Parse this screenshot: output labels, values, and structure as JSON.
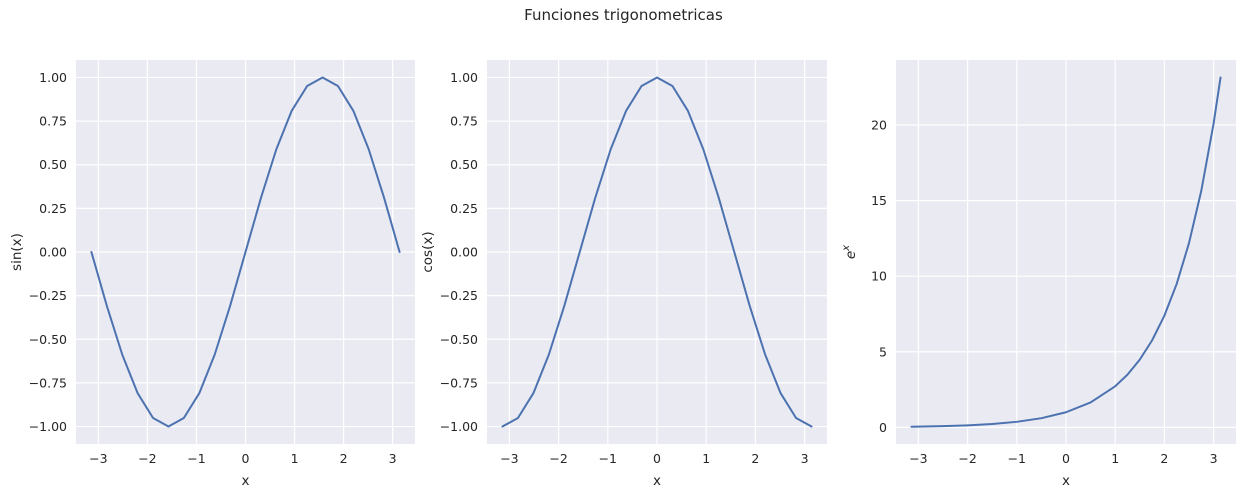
{
  "figure": {
    "title": "Funciones trigonometricas"
  },
  "style": {
    "plot_bg": "#EAEAF2",
    "grid_color": "#FFFFFF",
    "line_color": "#4C72B0",
    "text_color": "#262626"
  },
  "chart_data": [
    {
      "type": "line",
      "title": "",
      "xlabel": "x",
      "ylabel": "sin(x)",
      "xlim": [
        -3.456,
        3.456
      ],
      "ylim": [
        -1.1,
        1.1
      ],
      "grid": true,
      "xticks": [
        -3,
        -2,
        -1,
        0,
        1,
        2,
        3
      ],
      "yticks": [
        -1.0,
        -0.75,
        -0.5,
        -0.25,
        0.0,
        0.25,
        0.5,
        0.75,
        1.0
      ],
      "xtick_labels": [
        "−3",
        "−2",
        "−1",
        "0",
        "1",
        "2",
        "3"
      ],
      "ytick_labels": [
        "−1.00",
        "−0.75",
        "−0.50",
        "−0.25",
        "0.00",
        "0.25",
        "0.50",
        "0.75",
        "1.00"
      ],
      "series": [
        {
          "x": [
            -3.142,
            -2.827,
            -2.513,
            -2.199,
            -1.885,
            -1.571,
            -1.257,
            -0.942,
            -0.628,
            -0.314,
            0.0,
            0.314,
            0.628,
            0.942,
            1.257,
            1.571,
            1.885,
            2.199,
            2.513,
            2.827,
            3.142
          ],
          "y": [
            0.0,
            -0.309,
            -0.588,
            -0.809,
            -0.951,
            -1.0,
            -0.951,
            -0.809,
            -0.588,
            -0.309,
            0.0,
            0.309,
            0.588,
            0.809,
            0.951,
            1.0,
            0.951,
            0.809,
            0.588,
            0.309,
            0.0
          ]
        }
      ]
    },
    {
      "type": "line",
      "title": "",
      "xlabel": "x",
      "ylabel": "cos(x)",
      "xlim": [
        -3.456,
        3.456
      ],
      "ylim": [
        -1.1,
        1.1
      ],
      "grid": true,
      "xticks": [
        -3,
        -2,
        -1,
        0,
        1,
        2,
        3
      ],
      "yticks": [
        -1.0,
        -0.75,
        -0.5,
        -0.25,
        0.0,
        0.25,
        0.5,
        0.75,
        1.0
      ],
      "xtick_labels": [
        "−3",
        "−2",
        "−1",
        "0",
        "1",
        "2",
        "3"
      ],
      "ytick_labels": [
        "−1.00",
        "−0.75",
        "−0.50",
        "−0.25",
        "0.00",
        "0.25",
        "0.50",
        "0.75",
        "1.00"
      ],
      "series": [
        {
          "x": [
            -3.142,
            -2.827,
            -2.513,
            -2.199,
            -1.885,
            -1.571,
            -1.257,
            -0.942,
            -0.628,
            -0.314,
            0.0,
            0.314,
            0.628,
            0.942,
            1.257,
            1.571,
            1.885,
            2.199,
            2.513,
            2.827,
            3.142
          ],
          "y": [
            -1.0,
            -0.951,
            -0.809,
            -0.588,
            -0.309,
            0.0,
            0.309,
            0.588,
            0.809,
            0.951,
            1.0,
            0.951,
            0.809,
            0.588,
            0.309,
            0.0,
            -0.309,
            -0.588,
            -0.809,
            -0.951,
            -1.0
          ]
        }
      ]
    },
    {
      "type": "line",
      "title": "",
      "xlabel": "x",
      "ylabel": "e^x",
      "xlim": [
        -3.456,
        3.456
      ],
      "ylim": [
        -1.1,
        24.3
      ],
      "grid": true,
      "xticks": [
        -3,
        -2,
        -1,
        0,
        1,
        2,
        3
      ],
      "yticks": [
        0,
        5,
        10,
        15,
        20
      ],
      "xtick_labels": [
        "−3",
        "−2",
        "−1",
        "0",
        "1",
        "2",
        "3"
      ],
      "ytick_labels": [
        "0",
        "5",
        "10",
        "15",
        "20"
      ],
      "series": [
        {
          "x": [
            -3.142,
            -2.5,
            -2.0,
            -1.5,
            -1.0,
            -0.5,
            0.0,
            0.5,
            1.0,
            1.25,
            1.5,
            1.75,
            2.0,
            2.25,
            2.5,
            2.75,
            3.0,
            3.142
          ],
          "y": [
            0.043,
            0.082,
            0.135,
            0.223,
            0.368,
            0.607,
            1.0,
            1.649,
            2.718,
            3.49,
            4.482,
            5.755,
            7.389,
            9.488,
            12.182,
            15.643,
            20.086,
            23.141
          ]
        }
      ]
    }
  ]
}
